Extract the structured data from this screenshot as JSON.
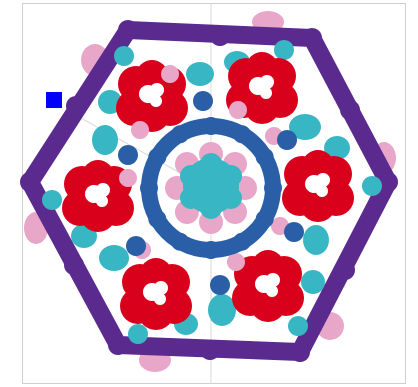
{
  "canvas": {
    "background": "#ffffff",
    "frame_color": "#cfcfcf",
    "guide_color": "#d9d9d9"
  },
  "palette": {
    "outer_ring": "#5b2a8e",
    "inner_ring": "#2a5fa8",
    "petals": "#d9001b",
    "teal": "#38b6c4",
    "pink": "#e8a6c8",
    "blue_dot": "#2a5fa8",
    "white": "#ffffff",
    "cursor": "#0000ff"
  },
  "icons": {
    "cursor": "selection-square-icon"
  }
}
